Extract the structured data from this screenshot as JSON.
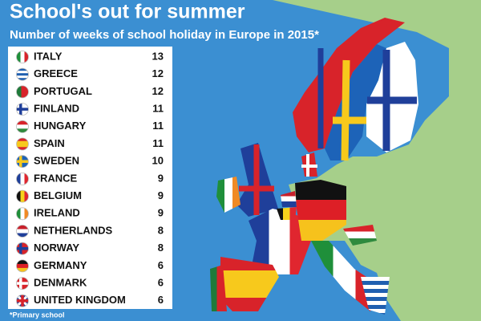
{
  "header": {
    "title": "School's out for summer",
    "subtitle": "Number of weeks of school holiday in Europe in 2015*"
  },
  "table": {
    "rows": [
      [
        "ITALY",
        "13"
      ],
      [
        "GREECE",
        "12"
      ],
      [
        "PORTUGAL",
        "12"
      ],
      [
        "FINLAND",
        "11"
      ],
      [
        "HUNGARY",
        "11"
      ],
      [
        "SPAIN",
        "11"
      ],
      [
        "SWEDEN",
        "10"
      ],
      [
        "FRANCE",
        "9"
      ],
      [
        "BELGIUM",
        "9"
      ],
      [
        "IRELAND",
        "9"
      ],
      [
        "NETHERLANDS",
        "8"
      ],
      [
        "NORWAY",
        "8"
      ],
      [
        "GERMANY",
        "6"
      ],
      [
        "DENMARK",
        "6"
      ],
      [
        "UNITED KINGDOM",
        "6"
      ]
    ]
  },
  "footnote": "*Primary school"
}
